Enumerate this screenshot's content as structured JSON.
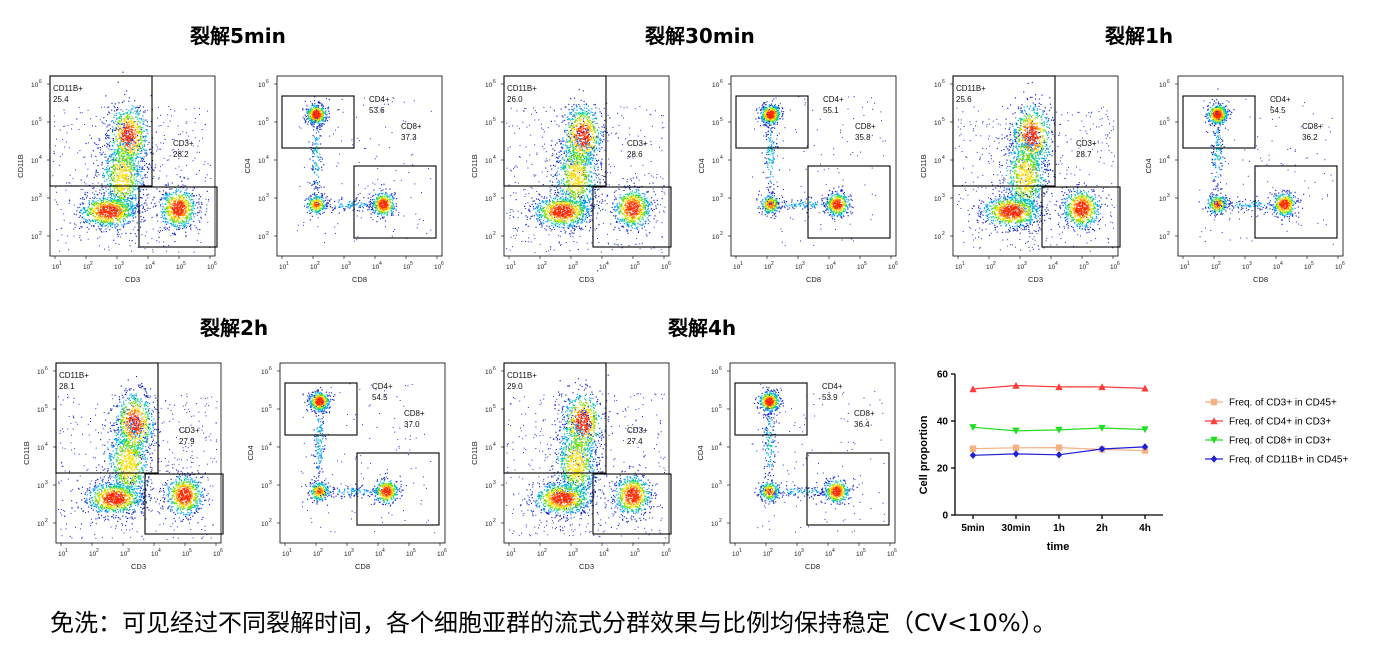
{
  "groups": [
    {
      "title": "裂解5min",
      "p1": {
        "cd11b": "25.4",
        "cd3": "28.2"
      },
      "p2": {
        "cd4": "53.6",
        "cd8": "37.3"
      }
    },
    {
      "title": "裂解30min",
      "p1": {
        "cd11b": "26.0",
        "cd3": "28.6"
      },
      "p2": {
        "cd4": "55.1",
        "cd8": "35.8"
      }
    },
    {
      "title": "裂解1h",
      "p1": {
        "cd11b": "25.6",
        "cd3": "28.7"
      },
      "p2": {
        "cd4": "54.5",
        "cd8": "36.2"
      }
    },
    {
      "title": "裂解2h",
      "p1": {
        "cd11b": "28.1",
        "cd3": "27.9"
      },
      "p2": {
        "cd4": "54.5",
        "cd8": "37.0"
      }
    },
    {
      "title": "裂解4h",
      "p1": {
        "cd11b": "29.0",
        "cd3": "27.4"
      },
      "p2": {
        "cd4": "53.9",
        "cd8": "36.4"
      }
    }
  ],
  "labels": {
    "cd11b_gate": "CD11B+",
    "cd3_gate": "CD3+",
    "cd4_gate": "CD4+",
    "cd8_gate": "CD8+",
    "x1": "CD3",
    "y1": "CD11B",
    "x2": "CD8",
    "y2": "CD4",
    "tick_base": "10",
    "decades": [
      "1",
      "2",
      "3",
      "4",
      "5",
      "6"
    ]
  },
  "chart_data": {
    "type": "line",
    "categories": [
      "5min",
      "30min",
      "1h",
      "2h",
      "4h"
    ],
    "xlabel": "time",
    "ylabel": "Cell proportion",
    "ylim": [
      0,
      60
    ],
    "yticks": [
      "0",
      "20",
      "40",
      "60"
    ],
    "series": [
      {
        "name": "Freq. of CD3+ in CD45+",
        "color": "#f4b183",
        "marker": "square",
        "values": [
          28.2,
          28.6,
          28.7,
          27.9,
          27.4
        ]
      },
      {
        "name": "Freq. of CD4+ in CD3+",
        "color": "#ff3b3b",
        "marker": "triangle-up",
        "values": [
          53.6,
          55.1,
          54.5,
          54.5,
          53.9
        ]
      },
      {
        "name": "Freq. of CD8+ in CD3+",
        "color": "#22dd22",
        "marker": "triangle-down",
        "values": [
          37.3,
          35.8,
          36.2,
          37.0,
          36.4
        ]
      },
      {
        "name": "Freq. of CD11B+ in CD45+",
        "color": "#1f1fd6",
        "marker": "diamond",
        "values": [
          25.4,
          26.0,
          25.6,
          28.1,
          29.0
        ]
      }
    ]
  },
  "caption": "免洗：可见经过不同裂解时间，各个细胞亚群的流式分群效果与比例均保持稳定（CV<10%）。"
}
